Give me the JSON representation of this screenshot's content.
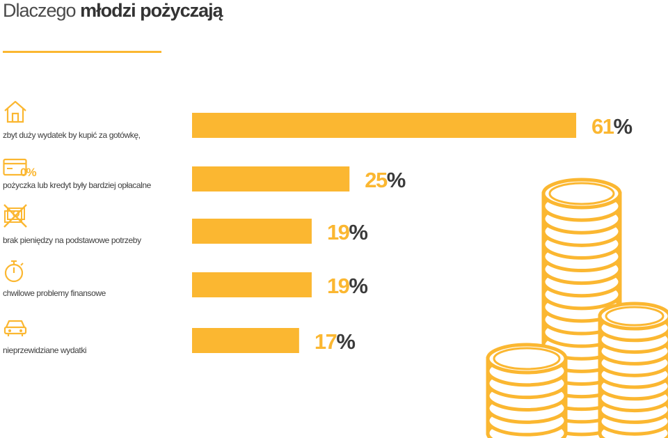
{
  "header": {
    "title_light": "Dlaczego",
    "title_bold": "młodzi pożyczają"
  },
  "colors": {
    "accent": "#fbb731",
    "text": "#444444",
    "coin_fill": "#ffffff"
  },
  "icons": {
    "large_expense": "house-icon",
    "cheaper_credit": "card-zero-percent-icon",
    "no_money": "crossed-money-icon",
    "temporary_problems": "stopwatch-icon",
    "unexpected": "car-icon"
  },
  "icon_text": {
    "zero_percent": "0%"
  },
  "chart_data": {
    "type": "bar",
    "orientation": "horizontal",
    "title": "Dlaczego młodzi pożyczają",
    "categories": [
      "zbyt duży wydatek by kupić za gotówkę,",
      "pożyczka lub kredyt były bardziej opłacalne",
      "brak pieniędzy na podstawowe potrzeby",
      "chwilowe problemy finansowe",
      "nieprzewidziane wydatki"
    ],
    "values": [
      61,
      25,
      19,
      19,
      17
    ],
    "value_labels": [
      {
        "num": "61",
        "unit": "%"
      },
      {
        "num": "25",
        "unit": "%"
      },
      {
        "num": "19",
        "unit": "%"
      },
      {
        "num": "19",
        "unit": "%"
      },
      {
        "num": "17",
        "unit": "%"
      }
    ],
    "unit": "%",
    "xlim": [
      0,
      100
    ],
    "xlabel": "",
    "ylabel": "",
    "grid": false,
    "legend": "none"
  }
}
